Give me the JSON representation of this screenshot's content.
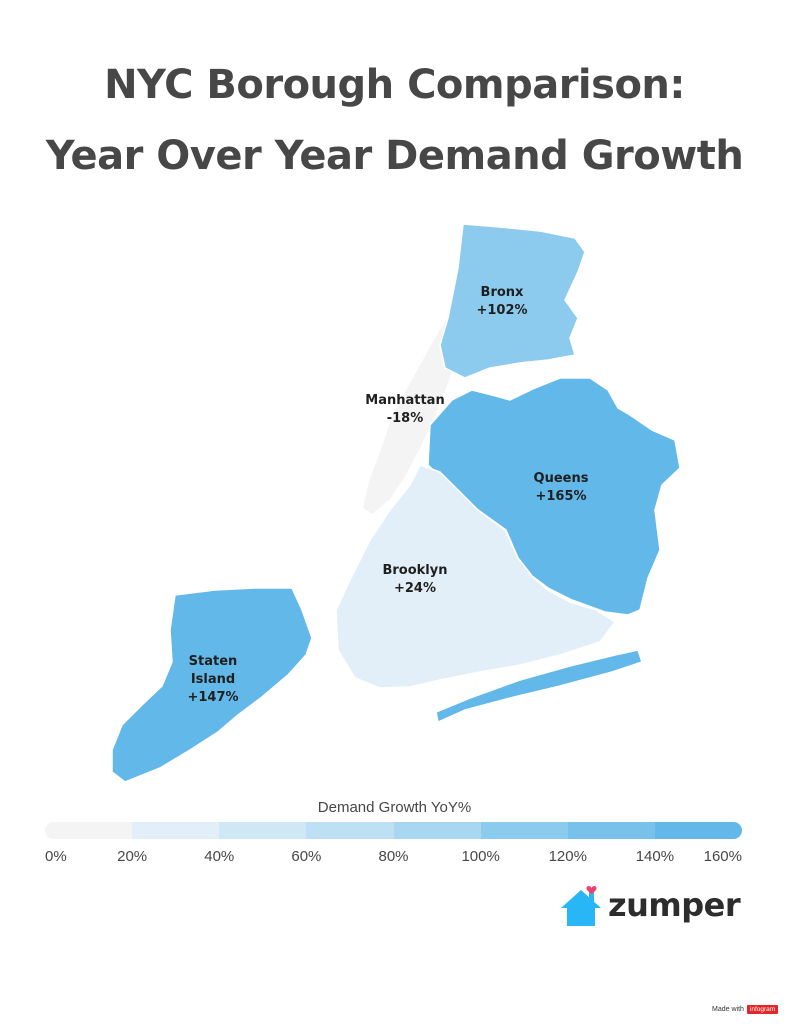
{
  "title": {
    "line1": "NYC Borough Comparison:",
    "line2": "Year Over Year Demand Growth"
  },
  "boroughs": [
    {
      "name": "Bronx",
      "value_label": "+102%",
      "growth_pct": 102,
      "color": "#8ccbee"
    },
    {
      "name": "Manhattan",
      "value_label": "-18%",
      "growth_pct": -18,
      "color": "#f4f4f4"
    },
    {
      "name": "Queens",
      "value_label": "+165%",
      "growth_pct": 165,
      "color": "#62b8e8"
    },
    {
      "name": "Brooklyn",
      "value_label": "+24%",
      "growth_pct": 24,
      "color": "#e3eff8"
    },
    {
      "name": "Staten",
      "name_line2": "Island",
      "value_label": "+147%",
      "growth_pct": 147,
      "color": "#62b8e8"
    }
  ],
  "legend": {
    "title": "Demand Growth YoY%",
    "ticks": [
      "0%",
      "20%",
      "40%",
      "60%",
      "80%",
      "100%",
      "120%",
      "140%",
      "160%"
    ],
    "colors": [
      "#f4f4f4",
      "#e3eff8",
      "#d0e8f6",
      "#bde0f4",
      "#a9d7f2",
      "#8ccbee",
      "#78c1eb",
      "#62b8e8"
    ]
  },
  "brand": {
    "name": "zumper",
    "icon": "house-heart-icon",
    "icon_color": "#29b6f6",
    "heart_color": "#ef3e6f"
  },
  "credit": {
    "text": "Made with",
    "badge": "infogram"
  }
}
